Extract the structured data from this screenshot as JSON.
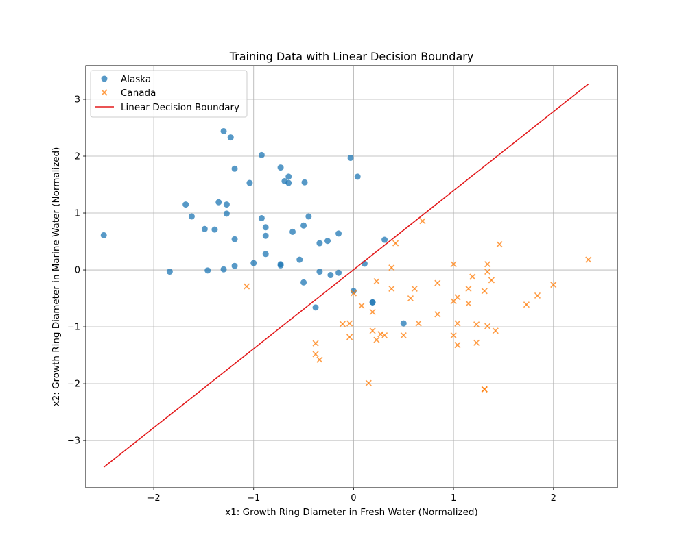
{
  "chart_data": {
    "type": "scatter",
    "title": "Training Data with Linear Decision Boundary",
    "xlabel": "x1: Growth Ring Diameter in Fresh Water (Normalized)",
    "ylabel": "x2: Growth Ring Diameter in Marine Water (Normalized)",
    "xlim": [
      -2.68,
      2.64
    ],
    "ylim": [
      -3.83,
      3.59
    ],
    "xticks": [
      -2,
      -1,
      0,
      1,
      2
    ],
    "yticks": [
      -3,
      -2,
      -1,
      0,
      1,
      2,
      3
    ],
    "grid": true,
    "legend_position": "top-left",
    "series": [
      {
        "name": "Alaska",
        "marker": "circle",
        "color": "#1f77b4",
        "points": [
          [
            -1.3,
            2.44
          ],
          [
            -1.23,
            2.33
          ],
          [
            -0.92,
            2.02
          ],
          [
            -0.03,
            1.97
          ],
          [
            -1.19,
            1.78
          ],
          [
            -0.73,
            1.8
          ],
          [
            -0.65,
            1.64
          ],
          [
            0.04,
            1.64
          ],
          [
            -1.04,
            1.53
          ],
          [
            -0.69,
            1.56
          ],
          [
            -0.65,
            1.53
          ],
          [
            -0.49,
            1.54
          ],
          [
            -1.68,
            1.15
          ],
          [
            -1.35,
            1.19
          ],
          [
            -1.27,
            1.15
          ],
          [
            -1.62,
            0.94
          ],
          [
            -1.27,
            0.99
          ],
          [
            -0.45,
            0.94
          ],
          [
            -0.92,
            0.91
          ],
          [
            -0.88,
            0.75
          ],
          [
            -0.5,
            0.78
          ],
          [
            -1.49,
            0.72
          ],
          [
            -1.39,
            0.71
          ],
          [
            -0.61,
            0.67
          ],
          [
            -0.88,
            0.6
          ],
          [
            -0.15,
            0.64
          ],
          [
            -1.19,
            0.54
          ],
          [
            -0.34,
            0.47
          ],
          [
            -0.26,
            0.51
          ],
          [
            0.31,
            0.53
          ],
          [
            -0.88,
            0.28
          ],
          [
            -0.54,
            0.18
          ],
          [
            -1.0,
            0.12
          ],
          [
            -0.73,
            0.1
          ],
          [
            -0.73,
            0.08
          ],
          [
            -1.19,
            0.07
          ],
          [
            0.11,
            0.11
          ],
          [
            -2.5,
            0.61
          ],
          [
            -1.84,
            -0.03
          ],
          [
            -1.46,
            -0.01
          ],
          [
            -1.3,
            0.01
          ],
          [
            -0.34,
            -0.03
          ],
          [
            -0.15,
            -0.05
          ],
          [
            -0.23,
            -0.09
          ],
          [
            -0.5,
            -0.22
          ],
          [
            0.0,
            -0.37
          ],
          [
            0.19,
            -0.57
          ],
          [
            0.19,
            -0.57
          ],
          [
            -0.38,
            -0.66
          ],
          [
            0.5,
            -0.94
          ]
        ]
      },
      {
        "name": "Canada",
        "marker": "x",
        "color": "#ff7f0e",
        "points": [
          [
            0.69,
            0.86
          ],
          [
            1.46,
            0.45
          ],
          [
            0.42,
            0.47
          ],
          [
            2.35,
            0.18
          ],
          [
            1.0,
            0.1
          ],
          [
            1.34,
            0.1
          ],
          [
            0.38,
            0.04
          ],
          [
            1.34,
            -0.03
          ],
          [
            1.19,
            -0.12
          ],
          [
            1.38,
            -0.18
          ],
          [
            0.23,
            -0.2
          ],
          [
            0.84,
            -0.23
          ],
          [
            2.0,
            -0.26
          ],
          [
            -1.07,
            -0.29
          ],
          [
            0.38,
            -0.33
          ],
          [
            0.61,
            -0.33
          ],
          [
            1.15,
            -0.33
          ],
          [
            1.31,
            -0.37
          ],
          [
            0.0,
            -0.41
          ],
          [
            1.84,
            -0.45
          ],
          [
            1.04,
            -0.48
          ],
          [
            0.57,
            -0.5
          ],
          [
            1.0,
            -0.55
          ],
          [
            1.15,
            -0.59
          ],
          [
            1.73,
            -0.61
          ],
          [
            0.08,
            -0.63
          ],
          [
            0.19,
            -0.74
          ],
          [
            0.84,
            -0.78
          ],
          [
            -0.11,
            -0.95
          ],
          [
            -0.04,
            -0.94
          ],
          [
            0.65,
            -0.94
          ],
          [
            1.04,
            -0.94
          ],
          [
            1.23,
            -0.96
          ],
          [
            1.34,
            -0.99
          ],
          [
            1.42,
            -1.07
          ],
          [
            0.19,
            -1.07
          ],
          [
            0.27,
            -1.13
          ],
          [
            0.31,
            -1.15
          ],
          [
            0.5,
            -1.15
          ],
          [
            1.0,
            -1.15
          ],
          [
            -0.04,
            -1.18
          ],
          [
            0.23,
            -1.23
          ],
          [
            1.23,
            -1.28
          ],
          [
            -0.38,
            -1.29
          ],
          [
            1.04,
            -1.32
          ],
          [
            -0.38,
            -1.48
          ],
          [
            -0.34,
            -1.58
          ],
          [
            0.15,
            -1.99
          ],
          [
            1.31,
            -2.1
          ],
          [
            1.31,
            -2.1
          ]
        ]
      },
      {
        "name": "Linear Decision Boundary",
        "marker": "line",
        "color": "#e31a1c",
        "points": [
          [
            -2.5,
            -3.47
          ],
          [
            2.35,
            3.27
          ]
        ]
      }
    ]
  }
}
